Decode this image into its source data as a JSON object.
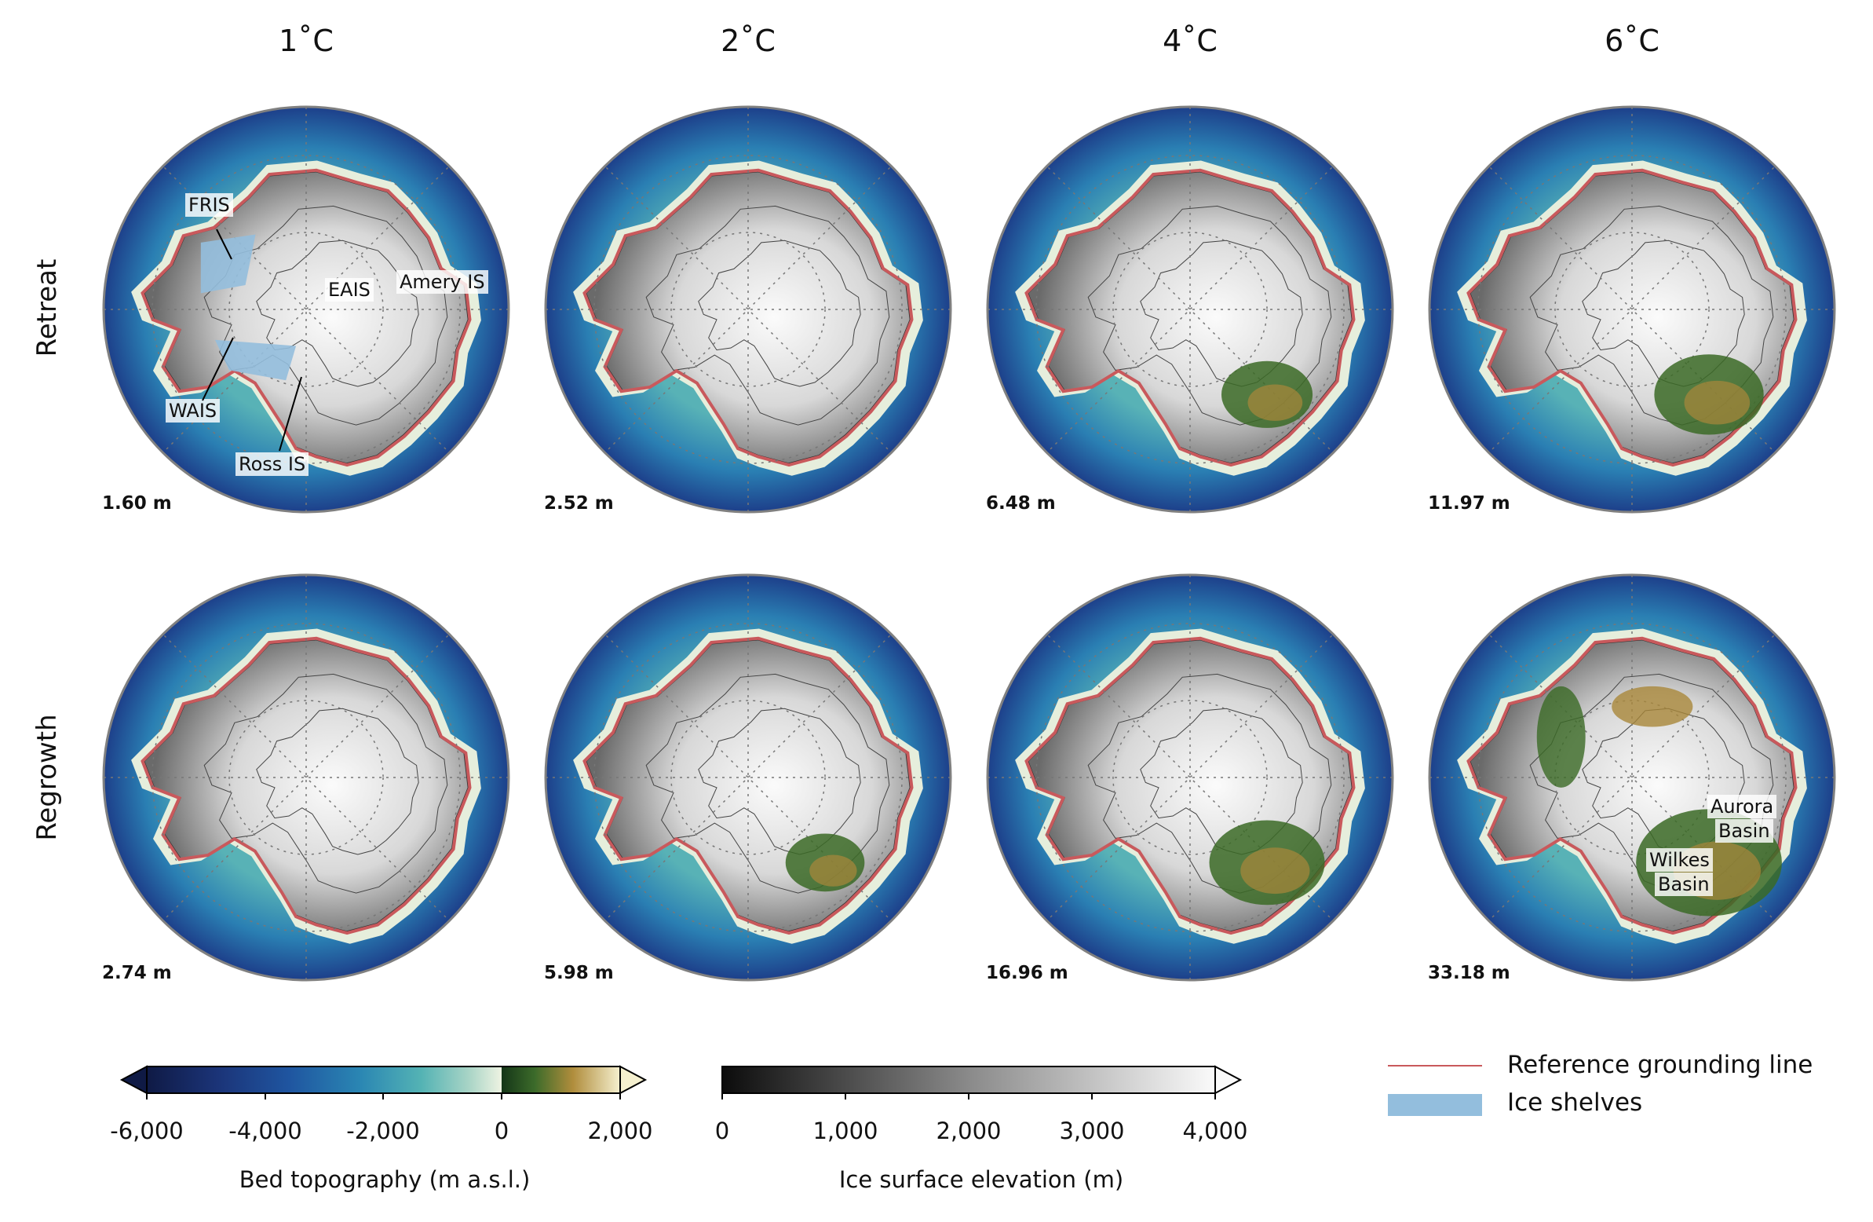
{
  "columns": [
    "1˚C",
    "2˚C",
    "4˚C",
    "6˚C"
  ],
  "rows": [
    "Retreat",
    "Regrowth"
  ],
  "sea_level": {
    "retreat": [
      "1.60 m",
      "2.52 m",
      "6.48 m",
      "11.97 m"
    ],
    "regrowth": [
      "2.74 m",
      "5.98 m",
      "16.96 m",
      "33.18 m"
    ]
  },
  "annotations": {
    "fris": "FRIS",
    "eais": "EAIS",
    "amery": "Amery IS",
    "wais": "WAIS",
    "ross": "Ross IS",
    "aurora_l1": "Aurora",
    "aurora_l2": "Basin",
    "wilkes_l1": "Wilkes",
    "wilkes_l2": "Basin"
  },
  "colorbars": {
    "bed": {
      "title": "Bed topography (m a.s.l.)",
      "ticks": [
        "-6,000",
        "-4,000",
        "-2,000",
        "0",
        "2,000"
      ],
      "range": [
        -6000,
        2000
      ]
    },
    "surface": {
      "title": "Ice surface elevation (m)",
      "ticks": [
        "0",
        "1,000",
        "2,000",
        "3,000",
        "4,000"
      ],
      "range": [
        0,
        4000
      ]
    }
  },
  "legend": {
    "grounding_line": "Reference grounding line",
    "ice_shelves": "Ice shelves"
  },
  "colors": {
    "ocean_deep": "#1d3f8a",
    "ocean_mid": "#2a7fb3",
    "shelf": "#e6eedc",
    "grounding_line": "#c9595c",
    "ice_shelf": "#93bedd",
    "ice_high": "#f4f4f4",
    "ice_low": "#6a6a6a",
    "land_green": "#2c5a23",
    "land_brown": "#b8933a"
  }
}
